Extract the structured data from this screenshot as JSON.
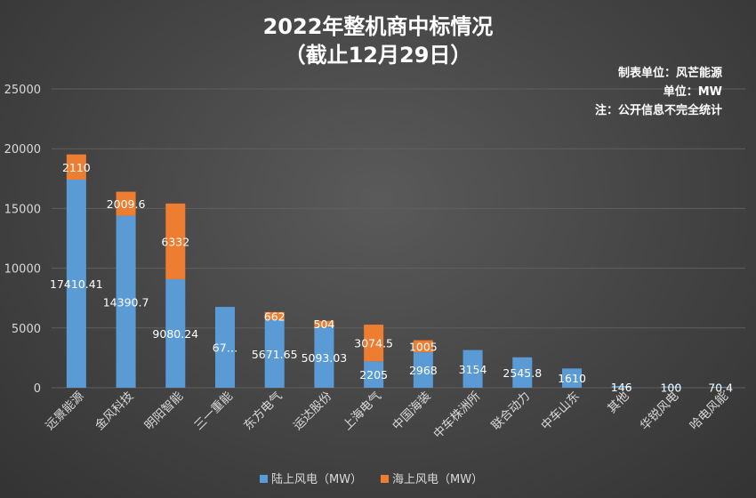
{
  "chart_data": {
    "type": "bar",
    "stacked": true,
    "title": "2022年整机商中标情况",
    "subtitle": "（截止12月29日）",
    "notes": [
      "制表单位：风芒能源",
      "单位：MW",
      "注：公开信息不完全统计"
    ],
    "categories": [
      "远景能源",
      "金风科技",
      "明阳智能",
      "三一重能",
      "东方电气",
      "运达股份",
      "上海电气",
      "中国海装",
      "中车株洲所",
      "联合动力",
      "中车山东",
      "其他",
      "华锐风电",
      "哈电风能"
    ],
    "series": [
      {
        "name": "陆上风电（MW）",
        "color": "#5b9bd5",
        "values": [
          17410.41,
          14390.7,
          9080.24,
          6766,
          5671.65,
          5093.03,
          2205,
          2968,
          3154,
          2545.8,
          1610,
          146,
          100,
          70.4
        ],
        "labels": [
          "17410.41",
          "14390.7",
          "9080.24",
          "67…",
          "5671.65",
          "5093.03",
          "2205",
          "2968",
          "3154",
          "2545.8",
          "1610",
          "146",
          "100",
          "70.4"
        ]
      },
      {
        "name": "海上风电（MW）",
        "color": "#ed7d31",
        "values": [
          2110,
          2009.6,
          6332,
          null,
          662,
          504,
          3074.5,
          1005,
          null,
          null,
          null,
          null,
          null,
          null
        ],
        "labels": [
          "2110",
          "2009.6",
          "6332",
          "",
          "662",
          "504",
          "3074.5",
          "1005",
          "",
          "",
          "",
          "",
          "",
          ""
        ]
      }
    ],
    "yticks": [
      "0",
      "5000",
      "10000",
      "15000",
      "20000",
      "25000"
    ],
    "ylim": [
      0,
      25000
    ],
    "grid": true,
    "legend": "bottom"
  }
}
